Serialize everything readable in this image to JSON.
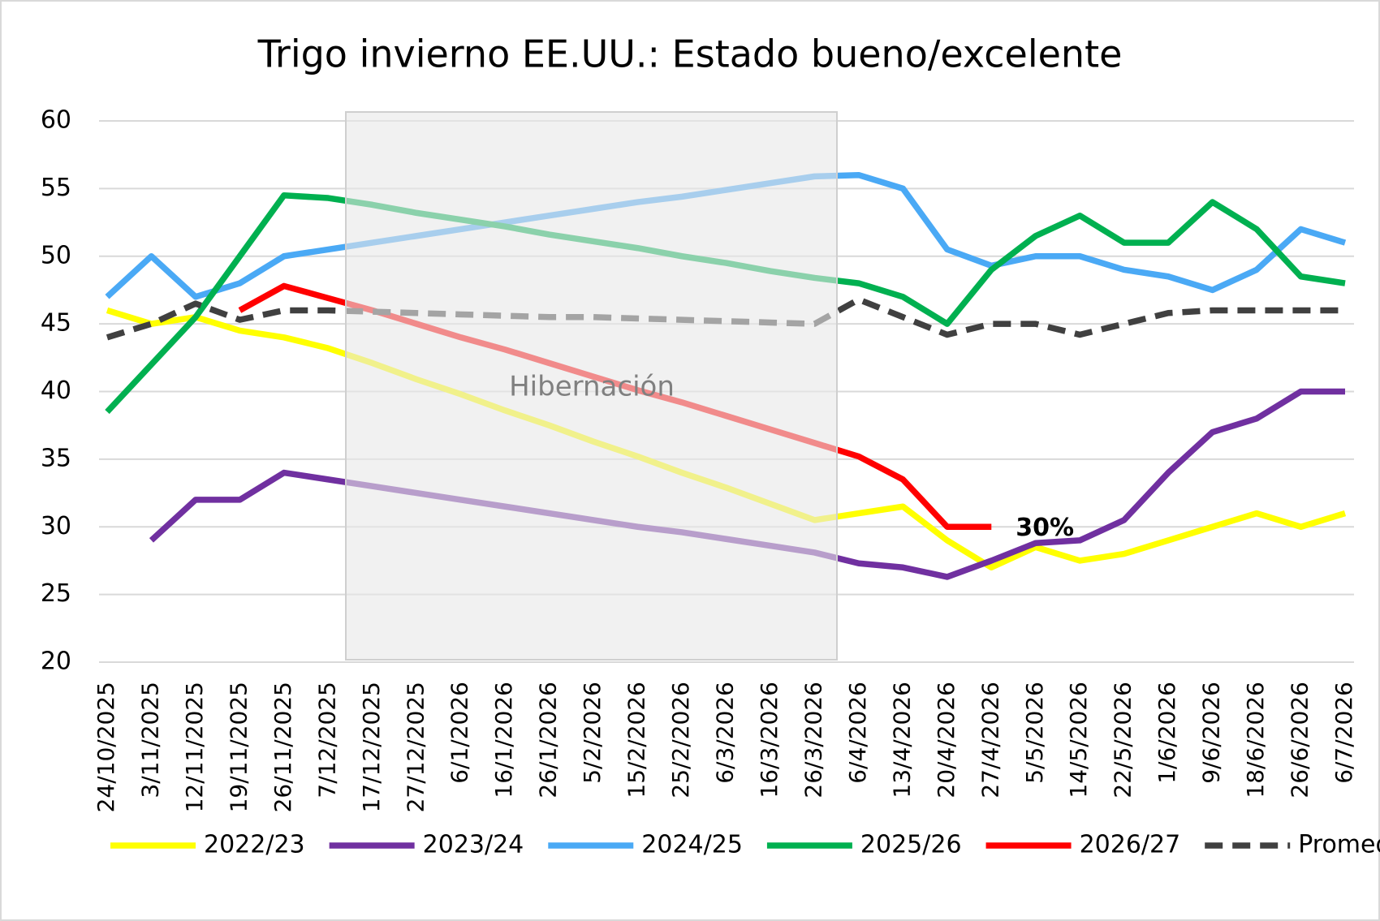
{
  "chart_data": {
    "type": "line",
    "title": "Trigo invierno EE.UU.: Estado bueno/excelente",
    "annotation": "Hibernación",
    "categories": [
      "24/10/2025",
      "3/11/2025",
      "12/11/2025",
      "19/11/2025",
      "26/11/2025",
      "7/12/2025",
      "17/12/2025",
      "27/12/2025",
      "6/1/2026",
      "16/1/2026",
      "26/1/2026",
      "5/2/2026",
      "15/2/2026",
      "25/2/2026",
      "6/3/2026",
      "16/3/2026",
      "26/3/2026",
      "6/4/2026",
      "13/4/2026",
      "20/4/2026",
      "27/4/2026",
      "5/5/2026",
      "14/5/2026",
      "22/5/2026",
      "1/6/2026",
      "9/6/2026",
      "18/6/2026",
      "26/6/2026",
      "6/7/2026"
    ],
    "series": [
      {
        "name": "2022/23",
        "color": "#ffff00",
        "values": [
          46,
          45,
          45.5,
          44.5,
          44,
          43.2,
          42.1,
          40.9,
          39.8,
          38.6,
          37.5,
          36.3,
          35.2,
          34,
          32.9,
          31.7,
          30.5,
          31,
          31.5,
          29,
          27,
          28.5,
          27.5,
          28,
          29,
          30,
          31,
          30,
          31
        ]
      },
      {
        "name": "2023/24",
        "color": "#7030a0",
        "values": [
          null,
          29,
          32,
          32,
          34,
          33.5,
          33,
          32.5,
          32,
          31.5,
          31,
          30.5,
          30,
          29.6,
          29.1,
          28.6,
          28.1,
          27.3,
          27,
          26.3,
          27.5,
          28.8,
          29,
          30.5,
          34,
          37,
          38,
          40,
          40
        ]
      },
      {
        "name": "2024/25",
        "color": "#4aa9f5",
        "values": [
          47,
          50,
          47,
          48,
          50,
          50.5,
          51,
          51.5,
          52,
          52.5,
          53,
          53.5,
          54,
          54.4,
          54.9,
          55.4,
          55.9,
          56,
          55,
          50.5,
          49.3,
          50,
          50,
          49,
          48.5,
          47.5,
          49,
          52,
          51
        ]
      },
      {
        "name": "2025/26",
        "color": "#00b050",
        "values": [
          38.5,
          42,
          45.5,
          50,
          54.5,
          54.3,
          53.8,
          53.2,
          52.7,
          52.2,
          51.6,
          51.1,
          50.6,
          50,
          49.5,
          48.9,
          48.4,
          48,
          47,
          45,
          49,
          51.5,
          53,
          51,
          51,
          54,
          52,
          48.5,
          48
        ]
      },
      {
        "name": "2026/27",
        "color": "#ff0000",
        "values": [
          null,
          null,
          null,
          46,
          47.8,
          46.9,
          46,
          45,
          44,
          43.1,
          42.1,
          41.1,
          40.1,
          39.2,
          38.2,
          37.2,
          36.2,
          35.2,
          33.5,
          30,
          30,
          null,
          null,
          null,
          null,
          null,
          null,
          null,
          null
        ],
        "value_labels": [
          null,
          null,
          null,
          null,
          null,
          null,
          null,
          null,
          null,
          null,
          null,
          null,
          null,
          null,
          null,
          null,
          null,
          null,
          null,
          null,
          "30%",
          null,
          null,
          null,
          null,
          null,
          null,
          null,
          null
        ]
      },
      {
        "name": "Promedio",
        "color": "#404040",
        "dashed": true,
        "values": [
          44,
          45,
          46.5,
          45.3,
          46,
          46,
          45.9,
          45.8,
          45.7,
          45.6,
          45.5,
          45.5,
          45.4,
          45.3,
          45.2,
          45.1,
          45,
          46.8,
          45.5,
          44.2,
          45,
          45,
          44.2,
          45,
          45.8,
          46,
          46,
          46,
          46
        ]
      }
    ],
    "ylim": [
      20,
      60
    ],
    "yticks": [
      20,
      25,
      30,
      35,
      40,
      45,
      50,
      55,
      60
    ],
    "grid": true,
    "legend": "bottom"
  }
}
